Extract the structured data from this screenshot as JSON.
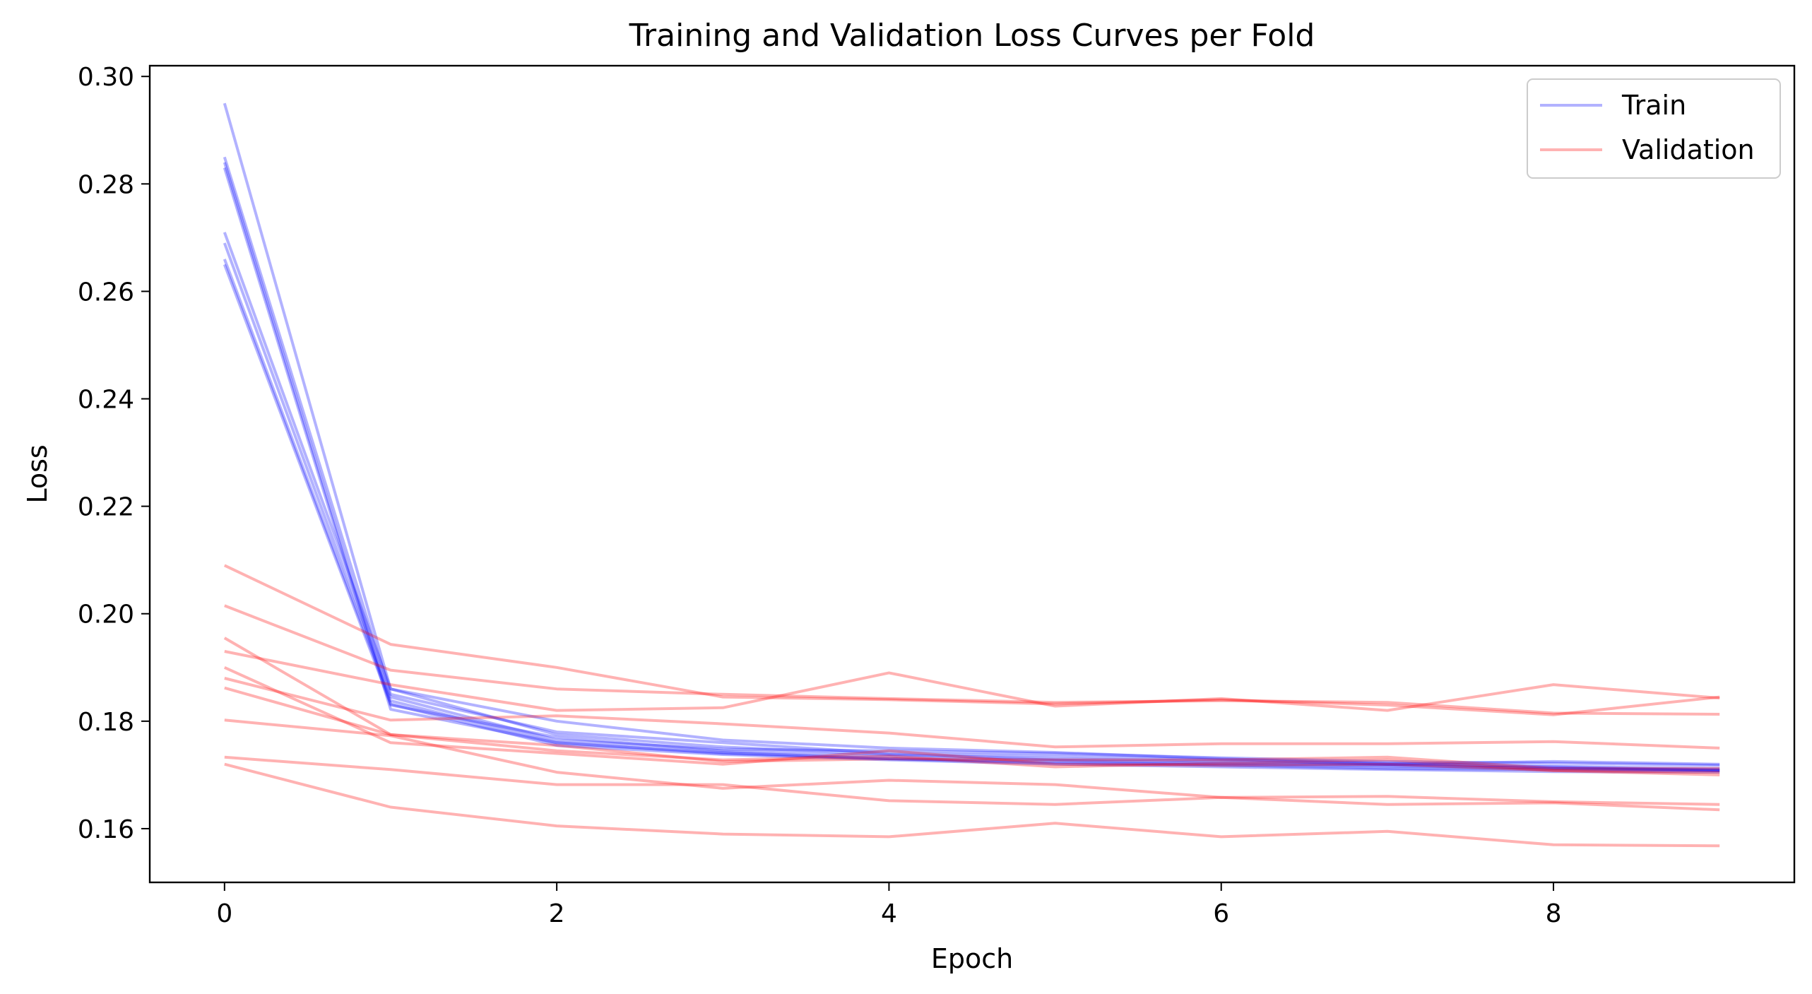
{
  "chart_data": {
    "type": "line",
    "title": "Training and Validation Loss Curves per Fold",
    "xlabel": "Epoch",
    "ylabel": "Loss",
    "xlim": [
      -0.45,
      9.45
    ],
    "ylim": [
      0.15,
      0.302
    ],
    "xticks": [
      0,
      2,
      4,
      6,
      8
    ],
    "yticks": [
      0.16,
      0.18,
      0.2,
      0.22,
      0.24,
      0.26,
      0.28,
      0.3
    ],
    "xtick_labels": [
      "0",
      "2",
      "4",
      "6",
      "8"
    ],
    "ytick_labels": [
      "0.16",
      "0.18",
      "0.20",
      "0.22",
      "0.24",
      "0.26",
      "0.28",
      "0.30"
    ],
    "grid": false,
    "legend": {
      "position": "top-right",
      "entries": [
        {
          "label": "Train",
          "color": "#0000ff"
        },
        {
          "label": "Validation",
          "color": "#ff0000"
        }
      ]
    },
    "x": [
      0,
      1,
      2,
      3,
      4,
      5,
      6,
      7,
      8,
      9
    ],
    "series": [
      {
        "group": "Train",
        "color": "#0000ff",
        "values": [
          0.295,
          0.186,
          0.18,
          0.1765,
          0.175,
          0.1742,
          0.173,
          0.1722,
          0.1715,
          0.1708
        ]
      },
      {
        "group": "Train",
        "color": "#0000ff",
        "values": [
          0.285,
          0.185,
          0.178,
          0.176,
          0.174,
          0.1735,
          0.1728,
          0.172,
          0.1716,
          0.1712
        ]
      },
      {
        "group": "Train",
        "color": "#0000ff",
        "values": [
          0.284,
          0.183,
          0.177,
          0.1745,
          0.1735,
          0.1728,
          0.1722,
          0.1718,
          0.1712,
          0.171
        ]
      },
      {
        "group": "Train",
        "color": "#0000ff",
        "values": [
          0.283,
          0.1822,
          0.176,
          0.174,
          0.173,
          0.1722,
          0.172,
          0.1716,
          0.1712,
          0.1708
        ]
      },
      {
        "group": "Train",
        "color": "#0000ff",
        "values": [
          0.271,
          0.186,
          0.1775,
          0.1752,
          0.1738,
          0.173,
          0.1725,
          0.172,
          0.1725,
          0.172
        ]
      },
      {
        "group": "Train",
        "color": "#0000ff",
        "values": [
          0.269,
          0.1845,
          0.1765,
          0.1748,
          0.1745,
          0.174,
          0.1732,
          0.1725,
          0.1722,
          0.1718
        ]
      },
      {
        "group": "Train",
        "color": "#0000ff",
        "values": [
          0.266,
          0.1838,
          0.176,
          0.1742,
          0.173,
          0.1725,
          0.1718,
          0.1712,
          0.171,
          0.1708
        ]
      },
      {
        "group": "Train",
        "color": "#0000ff",
        "values": [
          0.265,
          0.1832,
          0.1755,
          0.1738,
          0.1728,
          0.172,
          0.1715,
          0.171,
          0.1706,
          0.1705
        ]
      },
      {
        "group": "Validation",
        "color": "#ff0000",
        "values": [
          0.209,
          0.1943,
          0.19,
          0.1845,
          0.184,
          0.1832,
          0.184,
          0.183,
          0.1812,
          0.1845
        ]
      },
      {
        "group": "Validation",
        "color": "#ff0000",
        "values": [
          0.2015,
          0.1895,
          0.186,
          0.185,
          0.1842,
          0.1835,
          0.1838,
          0.1835,
          0.1815,
          0.1813
        ]
      },
      {
        "group": "Validation",
        "color": "#ff0000",
        "values": [
          0.193,
          0.1868,
          0.182,
          0.1825,
          0.189,
          0.1828,
          0.1842,
          0.182,
          0.1868,
          0.1843
        ]
      },
      {
        "group": "Validation",
        "color": "#ff0000",
        "values": [
          0.1955,
          0.1775,
          0.1755,
          0.1725,
          0.173,
          0.1728,
          0.1728,
          0.1733,
          0.1712,
          0.1712
        ]
      },
      {
        "group": "Validation",
        "color": "#ff0000",
        "values": [
          0.19,
          0.176,
          0.174,
          0.172,
          0.1745,
          0.172,
          0.1718,
          0.172,
          0.1708,
          0.17
        ]
      },
      {
        "group": "Validation",
        "color": "#ff0000",
        "values": [
          0.188,
          0.1802,
          0.181,
          0.1795,
          0.1778,
          0.1752,
          0.1758,
          0.1758,
          0.1762,
          0.175
        ]
      },
      {
        "group": "Validation",
        "color": "#ff0000",
        "values": [
          0.1862,
          0.1775,
          0.1745,
          0.1728,
          0.1735,
          0.1715,
          0.1722,
          0.1728,
          0.1708,
          0.1705
        ]
      },
      {
        "group": "Validation",
        "color": "#ff0000",
        "values": [
          0.1802,
          0.1773,
          0.1705,
          0.1675,
          0.169,
          0.1682,
          0.1658,
          0.166,
          0.165,
          0.1645
        ]
      },
      {
        "group": "Validation",
        "color": "#ff0000",
        "values": [
          0.1733,
          0.171,
          0.1682,
          0.1682,
          0.1652,
          0.1645,
          0.1658,
          0.1645,
          0.1648,
          0.1635
        ]
      },
      {
        "group": "Validation",
        "color": "#ff0000",
        "values": [
          0.172,
          0.164,
          0.1605,
          0.159,
          0.1585,
          0.161,
          0.1585,
          0.1595,
          0.157,
          0.1568
        ]
      }
    ]
  }
}
